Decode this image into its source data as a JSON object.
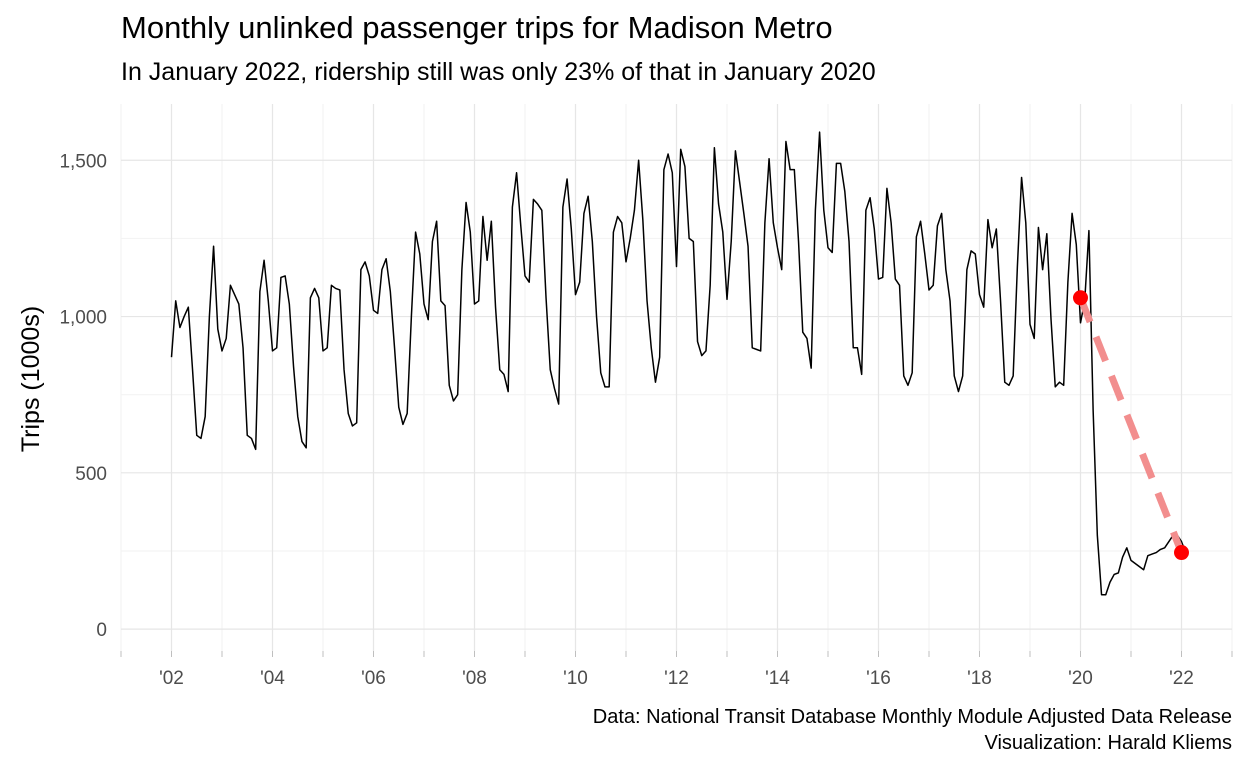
{
  "chart_data": {
    "type": "line",
    "title": "Monthly unlinked passenger trips for Madison Metro",
    "subtitle": "In January 2022, ridership still was only 23% of that in January 2020",
    "ylabel": "Trips (1000s)",
    "xlabel": "",
    "caption": [
      "Data: National Transit Database Monthly Module Adjusted Data Release",
      "Visualization: Harald Kliems"
    ],
    "x_range": [
      2001.0,
      2023.0
    ],
    "ylim": [
      -70,
      1680
    ],
    "x_ticks": [
      {
        "value": 2002,
        "label": "'02"
      },
      {
        "value": 2004,
        "label": "'04"
      },
      {
        "value": 2006,
        "label": "'06"
      },
      {
        "value": 2008,
        "label": "'08"
      },
      {
        "value": 2010,
        "label": "'10"
      },
      {
        "value": 2012,
        "label": "'12"
      },
      {
        "value": 2014,
        "label": "'14"
      },
      {
        "value": 2016,
        "label": "'16"
      },
      {
        "value": 2018,
        "label": "'18"
      },
      {
        "value": 2020,
        "label": "'20"
      },
      {
        "value": 2022,
        "label": "'22"
      }
    ],
    "y_ticks": [
      {
        "value": 0,
        "label": "0"
      },
      {
        "value": 500,
        "label": "500"
      },
      {
        "value": 1000,
        "label": "1,000"
      },
      {
        "value": 1500,
        "label": "1,500"
      }
    ],
    "grid": true,
    "series": [
      {
        "color": "#000000",
        "start_year": 2002,
        "start_month": 1,
        "values": [
          870,
          1050,
          965,
          1000,
          1030,
          830,
          620,
          610,
          680,
          1000,
          1225,
          960,
          890,
          930,
          1100,
          1070,
          1040,
          900,
          620,
          610,
          575,
          1080,
          1180,
          1050,
          890,
          900,
          1125,
          1130,
          1040,
          840,
          680,
          600,
          580,
          1060,
          1090,
          1060,
          890,
          900,
          1100,
          1090,
          1085,
          830,
          690,
          650,
          660,
          1150,
          1175,
          1130,
          1020,
          1010,
          1150,
          1185,
          1080,
          900,
          710,
          655,
          690,
          1000,
          1270,
          1200,
          1040,
          990,
          1240,
          1305,
          1050,
          1035,
          780,
          730,
          750,
          1150,
          1365,
          1270,
          1040,
          1050,
          1320,
          1180,
          1305,
          1030,
          830,
          815,
          760,
          1350,
          1460,
          1290,
          1130,
          1110,
          1375,
          1360,
          1340,
          1060,
          830,
          770,
          720,
          1350,
          1440,
          1280,
          1070,
          1110,
          1330,
          1385,
          1240,
          1000,
          820,
          775,
          775,
          1270,
          1320,
          1300,
          1175,
          1250,
          1340,
          1500,
          1310,
          1050,
          900,
          790,
          870,
          1470,
          1520,
          1460,
          1160,
          1535,
          1480,
          1250,
          1240,
          920,
          875,
          890,
          1100,
          1540,
          1360,
          1270,
          1055,
          1240,
          1530,
          1430,
          1330,
          1225,
          900,
          895,
          890,
          1300,
          1505,
          1300,
          1220,
          1150,
          1560,
          1470,
          1470,
          1240,
          950,
          930,
          835,
          1340,
          1590,
          1340,
          1220,
          1205,
          1490,
          1490,
          1400,
          1240,
          900,
          900,
          815,
          1340,
          1380,
          1280,
          1120,
          1125,
          1410,
          1300,
          1120,
          1100,
          810,
          780,
          820,
          1255,
          1305,
          1200,
          1085,
          1100,
          1290,
          1330,
          1150,
          1050,
          810,
          760,
          810,
          1150,
          1210,
          1200,
          1070,
          1030,
          1310,
          1220,
          1280,
          1050,
          790,
          780,
          810,
          1160,
          1445,
          1300,
          975,
          930,
          1285,
          1150,
          1265,
          990,
          775,
          790,
          780,
          1110,
          1330,
          1230,
          980,
          1050,
          1275,
          700,
          300,
          110,
          110,
          150,
          175,
          180,
          230,
          260,
          220,
          210,
          200,
          190,
          235,
          240,
          245,
          255,
          260,
          280,
          300,
          300,
          280,
          245
        ]
      },
      {
        "color": "#f28e8e",
        "style": "dashed",
        "x": [
          "2020-01",
          "2022-01"
        ],
        "values": [
          1060,
          245
        ]
      }
    ],
    "highlight_points": [
      {
        "x": "2020-01",
        "y": 1060,
        "color": "#ff0000"
      },
      {
        "x": "2022-01",
        "y": 245,
        "color": "#ff0000"
      }
    ]
  }
}
